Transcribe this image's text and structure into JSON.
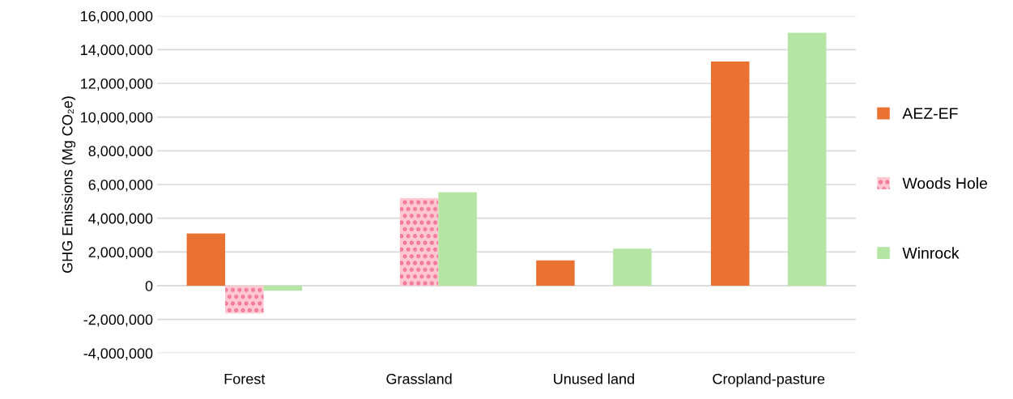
{
  "chart_data": {
    "type": "bar",
    "ylabel": "GHG Emissions (Mg CO₂e)",
    "categories": [
      "Forest",
      "Grassland",
      "Unused land",
      "Cropland-pasture"
    ],
    "series": [
      {
        "name": "AEZ-EF",
        "color": "#e97132",
        "values": [
          3100000,
          null,
          1500000,
          13300000
        ]
      },
      {
        "name": "Woods Hole",
        "color": "#ffc7ce",
        "values": [
          -1650000,
          5200000,
          null,
          null
        ]
      },
      {
        "name": "Winrock",
        "color": "#b4e5a2",
        "values": [
          -300000,
          5550000,
          2200000,
          15000000
        ]
      }
    ],
    "ylim": [
      -4000000,
      16000000
    ],
    "yticks": [
      {
        "value": -4000000,
        "label": "-4,000,000"
      },
      {
        "value": -2000000,
        "label": "-2,000,000"
      },
      0,
      {
        "value": 2000000,
        "label": "2,000,000"
      },
      {
        "value": 4000000,
        "label": "4,000,000"
      },
      {
        "value": 6000000,
        "label": "6,000,000"
      },
      {
        "value": 8000000,
        "label": "8,000,000"
      },
      {
        "value": 10000000,
        "label": "10,000,000"
      },
      {
        "value": 12000000,
        "label": "12,000,000"
      },
      {
        "value": 14000000,
        "label": "14,000,000"
      },
      {
        "value": 16000000,
        "label": "16,000,000"
      }
    ],
    "grid": "y",
    "legend": "right"
  }
}
